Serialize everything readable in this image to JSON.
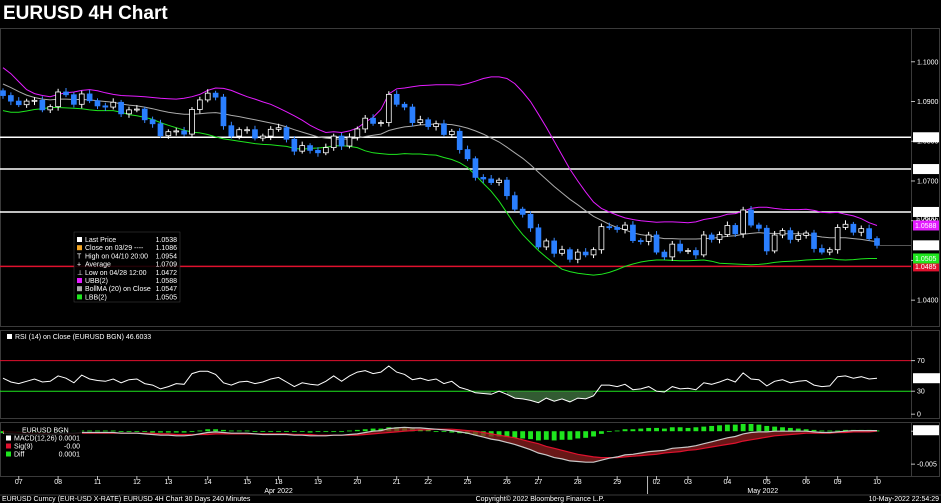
{
  "chart_data": {
    "type": "candlestick",
    "title": "EURUSD 4H Chart",
    "price_panel": {
      "ylim": [
        1.0335,
        1.1085
      ],
      "y_ticks": [
        1.04,
        1.05,
        1.06,
        1.07,
        1.08,
        1.09,
        1.1
      ],
      "y_tick_labels": [
        "1.0400",
        "1.0500",
        "1.0600",
        "1.0700",
        "1.0800",
        "1.0900",
        "1.1000"
      ],
      "levels": [
        {
          "value": 1.081,
          "label": "1.0810",
          "color": "#ffffff"
        },
        {
          "value": 1.073,
          "label": "1.0730",
          "color": "#ffffff"
        },
        {
          "value": 1.0622,
          "label": "1.0622",
          "color": "#ffffff"
        },
        {
          "value": 1.0485,
          "label": "1.0485",
          "color": "#e0112e"
        }
      ],
      "last_price_tag": {
        "value": 1.0538,
        "label": "1.0538"
      },
      "ubb_tag": {
        "value": 1.0588,
        "label": "1.0588"
      },
      "lbb_tag": {
        "value": 1.0505,
        "label": "1.0505"
      },
      "obscured_tag": "1.0600",
      "legend": [
        {
          "label": "Last Price",
          "value": "1.0538",
          "color": "#ffffff"
        },
        {
          "label": "Close on 03/29 ----",
          "value": "1.1086",
          "color": "#f5a623"
        },
        {
          "label": "High on 04/10 20:00",
          "value": "1.0954",
          "color": "#ffffff",
          "marker": "T"
        },
        {
          "label": "Average",
          "value": "1.0709",
          "color": "#ffffff",
          "marker": "+"
        },
        {
          "label": "Low on 04/28 12:00",
          "value": "1.0472",
          "color": "#ffffff",
          "marker": "⊥"
        },
        {
          "label": "UBB(2)",
          "value": "1.0588",
          "color": "#e41cff"
        },
        {
          "label": "BollMA (20)  on Close",
          "value": "1.0547",
          "color": "#aaaaaa"
        },
        {
          "label": "LBB(2)",
          "value": "1.0505",
          "color": "#1ee61e"
        }
      ],
      "series": {
        "close": [
          1.0915,
          1.0901,
          1.0892,
          1.0901,
          1.0903,
          1.0879,
          1.0887,
          1.0924,
          1.0917,
          1.0893,
          1.0919,
          1.0902,
          1.0889,
          1.0886,
          1.0898,
          1.0869,
          1.0879,
          1.0881,
          1.0854,
          1.0844,
          1.0814,
          1.0824,
          1.0826,
          1.0818,
          1.088,
          1.0904,
          1.0921,
          1.0911,
          1.0839,
          1.0813,
          1.0829,
          1.0829,
          1.0808,
          1.0813,
          1.083,
          1.0834,
          1.0805,
          1.0775,
          1.0789,
          1.0777,
          1.0771,
          1.0784,
          1.0813,
          1.0788,
          1.081,
          1.0831,
          1.0858,
          1.0845,
          1.0847,
          1.0918,
          1.0893,
          1.0886,
          1.0847,
          1.0854,
          1.0837,
          1.0844,
          1.0817,
          1.0825,
          1.0779,
          1.0756,
          1.0709,
          1.0705,
          1.0696,
          1.0702,
          1.0663,
          1.0629,
          1.0616,
          1.0582,
          1.0534,
          1.0549,
          1.0518,
          1.0527,
          1.0503,
          1.0521,
          1.0514,
          1.0527,
          1.0585,
          1.0583,
          1.0578,
          1.0589,
          1.055,
          1.0548,
          1.0564,
          1.0521,
          1.0509,
          1.0541,
          1.0524,
          1.0525,
          1.0514,
          1.0564,
          1.0553,
          1.0565,
          1.0588,
          1.0567,
          1.0627,
          1.0589,
          1.0581,
          1.0524,
          1.0564,
          1.0575,
          1.0553,
          1.0563,
          1.0569,
          1.053,
          1.0521,
          1.0527,
          1.0583,
          1.0591,
          1.0571,
          1.058,
          1.0555,
          1.0538
        ],
        "ubb": [
          1.0985,
          1.097,
          1.095,
          1.093,
          1.092,
          1.0915,
          1.0912,
          1.0918,
          1.0922,
          1.0924,
          1.0928,
          1.093,
          1.0927,
          1.0922,
          1.0918,
          1.0915,
          1.0914,
          1.0913,
          1.0912,
          1.091,
          1.0908,
          1.0907,
          1.0906,
          1.0908,
          1.0912,
          1.0918,
          1.0928,
          1.0934,
          1.0933,
          1.0928,
          1.092,
          1.0912,
          1.0906,
          1.0899,
          1.0893,
          1.0884,
          1.0874,
          1.0864,
          1.0853,
          1.084,
          1.083,
          1.0822,
          1.0824,
          1.0822,
          1.0826,
          1.0833,
          1.0848,
          1.086,
          1.088,
          1.0919,
          1.0932,
          1.0934,
          1.0937,
          1.094,
          1.0941,
          1.0942,
          1.0942,
          1.0942,
          1.0941,
          1.0945,
          1.0951,
          1.0958,
          1.0962,
          1.0962,
          1.0958,
          1.0945,
          1.0924,
          1.09,
          1.0868,
          1.0835,
          1.08,
          1.0765,
          1.073,
          1.07,
          1.0672,
          1.0647,
          1.0631,
          1.0622,
          1.0614,
          1.0607,
          1.0603,
          1.06,
          1.0598,
          1.0596,
          1.0597,
          1.0597,
          1.0596,
          1.0595,
          1.0597,
          1.0603,
          1.0606,
          1.061,
          1.0616,
          1.0618,
          1.0624,
          1.0631,
          1.0634,
          1.0634,
          1.0631,
          1.0629,
          1.0628,
          1.0628,
          1.0629,
          1.0626,
          1.0621,
          1.062,
          1.0621,
          1.0616,
          1.0612,
          1.0605,
          1.0595,
          1.0588
        ],
        "ma": [
          1.0944,
          1.0935,
          1.0925,
          1.0916,
          1.091,
          1.0906,
          1.0904,
          1.0906,
          1.0906,
          1.0905,
          1.0905,
          1.0904,
          1.0902,
          1.09,
          1.0898,
          1.0894,
          1.0891,
          1.0889,
          1.0886,
          1.0882,
          1.0877,
          1.0873,
          1.087,
          1.0868,
          1.0868,
          1.0869,
          1.0871,
          1.0872,
          1.0869,
          1.0865,
          1.0862,
          1.0858,
          1.0854,
          1.085,
          1.0846,
          1.0842,
          1.0836,
          1.0829,
          1.0823,
          1.0817,
          1.0811,
          1.0808,
          1.0806,
          1.0805,
          1.0806,
          1.0808,
          1.0812,
          1.0815,
          1.0818,
          1.0827,
          1.0832,
          1.0836,
          1.0838,
          1.0841,
          1.0842,
          1.0844,
          1.0843,
          1.0842,
          1.0838,
          1.0833,
          1.0826,
          1.0818,
          1.0808,
          1.0798,
          1.0785,
          1.0771,
          1.0757,
          1.0741,
          1.0722,
          1.0704,
          1.0686,
          1.067,
          1.0654,
          1.064,
          1.0625,
          1.0611,
          1.0601,
          1.0591,
          1.0583,
          1.0577,
          1.0569,
          1.0565,
          1.0562,
          1.0558,
          1.0555,
          1.0555,
          1.0554,
          1.0554,
          1.0554,
          1.0555,
          1.0556,
          1.0558,
          1.0561,
          1.0562,
          1.0566,
          1.0568,
          1.057,
          1.0568,
          1.0568,
          1.0567,
          1.0567,
          1.0567,
          1.0566,
          1.0562,
          1.0559,
          1.0557,
          1.0557,
          1.0557,
          1.0555,
          1.0553,
          1.055,
          1.0547
        ],
        "lbb": [
          1.0877,
          1.0873,
          1.0873,
          1.0876,
          1.088,
          1.0882,
          1.0885,
          1.0885,
          1.0884,
          1.0883,
          1.0882,
          1.0879,
          1.0877,
          1.0877,
          1.0877,
          1.0873,
          1.0867,
          1.0864,
          1.086,
          1.0855,
          1.0847,
          1.084,
          1.0834,
          1.0828,
          1.0823,
          1.0821,
          1.0817,
          1.0811,
          1.0806,
          1.0803,
          1.08,
          1.0797,
          1.0794,
          1.0792,
          1.0791,
          1.0789,
          1.0787,
          1.0782,
          1.078,
          1.0782,
          1.0783,
          1.0785,
          1.0788,
          1.0789,
          1.0787,
          1.0784,
          1.0776,
          1.0771,
          1.0769,
          1.0767,
          1.0767,
          1.0769,
          1.0768,
          1.0768,
          1.0766,
          1.0765,
          1.0759,
          1.0754,
          1.0746,
          1.0734,
          1.0715,
          1.0694,
          1.0674,
          1.0649,
          1.062,
          1.059,
          1.0565,
          1.0545,
          1.0525,
          1.0508,
          1.0492,
          1.0478,
          1.0472,
          1.0468,
          1.0465,
          1.0463,
          1.0465,
          1.047,
          1.0477,
          1.0485,
          1.0491,
          1.0496,
          1.0499,
          1.0501,
          1.0501,
          1.05,
          1.0499,
          1.0499,
          1.05,
          1.0501,
          1.0498,
          1.0493,
          1.0492,
          1.0491,
          1.049,
          1.0489,
          1.049,
          1.0492,
          1.0495,
          1.0497,
          1.0498,
          1.0499,
          1.0501,
          1.0502,
          1.0503,
          1.0505,
          1.0502,
          1.0501,
          1.0502,
          1.0504,
          1.0505,
          1.0505
        ]
      }
    },
    "rsi_panel": {
      "label": "RSI (14)  on Close (EURUSD BGN) 46.6033",
      "value_tag": "46.6033",
      "ylim": [
        -5,
        110
      ],
      "y_ticks": [
        0,
        30,
        70
      ],
      "y_tick_labels": [
        "0",
        "30",
        "70"
      ],
      "levels": [
        30,
        70
      ],
      "values": [
        47,
        42,
        40,
        43,
        46,
        42,
        43,
        50,
        47,
        41,
        51,
        46,
        44,
        43,
        46,
        41,
        45,
        46,
        40,
        38,
        33,
        36,
        40,
        39,
        53,
        56,
        56,
        52,
        41,
        38,
        42,
        43,
        40,
        42,
        46,
        48,
        42,
        36,
        41,
        39,
        38,
        43,
        50,
        43,
        50,
        55,
        57,
        53,
        55,
        63,
        55,
        52,
        45,
        47,
        44,
        46,
        40,
        43,
        35,
        32,
        28,
        27,
        26,
        30,
        26,
        21,
        20,
        18,
        15,
        21,
        17,
        20,
        16,
        21,
        20,
        24,
        38,
        38,
        36,
        39,
        32,
        33,
        36,
        30,
        29,
        36,
        33,
        34,
        32,
        41,
        39,
        42,
        46,
        42,
        54,
        46,
        45,
        37,
        43,
        45,
        41,
        43,
        44,
        38,
        36,
        37,
        49,
        50,
        47,
        49,
        46,
        47
      ]
    },
    "macd_panel": {
      "legend": [
        {
          "label": "EURUSD BGN",
          "value": "",
          "color": "#ffffff"
        },
        {
          "label": "MACD(12,26)",
          "value": "0.0001",
          "color": "#ffffff"
        },
        {
          "label": "Sig(9)",
          "value": "-0.00",
          "color": "#e0112e"
        },
        {
          "label": "Diff",
          "value": "0.0001",
          "color": "#1ee61e"
        }
      ],
      "value_tag": "0.0001",
      "ylim": [
        -0.0068,
        0.0014
      ],
      "y_ticks": [
        0,
        -0.005
      ],
      "y_tick_labels": [
        "0",
        "-0.005"
      ],
      "macd": [
        -0.0003,
        -0.0004,
        -0.0005,
        -0.0005,
        -0.0005,
        -0.0005,
        -0.0005,
        -0.0004,
        -0.0003,
        -0.0003,
        -0.0002,
        -0.0002,
        -0.0002,
        -0.0002,
        -0.0002,
        -0.0003,
        -0.0003,
        -0.0003,
        -0.0004,
        -0.0005,
        -0.0006,
        -0.0006,
        -0.0007,
        -0.0007,
        -0.0006,
        -0.0004,
        -0.0002,
        -0.0001,
        -0.0002,
        -0.0003,
        -0.0003,
        -0.0003,
        -0.0004,
        -0.0005,
        -0.0005,
        -0.0005,
        -0.0005,
        -0.0006,
        -0.0006,
        -0.0007,
        -0.0007,
        -0.0007,
        -0.0006,
        -0.0006,
        -0.0005,
        -0.0004,
        -0.0002,
        0.0,
        0.0001,
        0.0004,
        0.0005,
        0.0006,
        0.0005,
        0.0005,
        0.0004,
        0.0003,
        0.0002,
        0.0001,
        -0.0001,
        -0.0003,
        -0.0006,
        -0.0009,
        -0.0012,
        -0.0014,
        -0.0017,
        -0.002,
        -0.0024,
        -0.0028,
        -0.0033,
        -0.0036,
        -0.004,
        -0.0042,
        -0.0045,
        -0.0046,
        -0.0047,
        -0.0047,
        -0.0044,
        -0.0041,
        -0.0039,
        -0.0036,
        -0.0035,
        -0.0033,
        -0.0031,
        -0.003,
        -0.0029,
        -0.0026,
        -0.0025,
        -0.0024,
        -0.0022,
        -0.0019,
        -0.0016,
        -0.0013,
        -0.001,
        -0.0008,
        -0.0004,
        -0.0002,
        -0.0001,
        -0.0001,
        0.0,
        0.0,
        0.0,
        0.0,
        0.0,
        -0.0001,
        -0.0002,
        -0.0002,
        -0.0001,
        0.0,
        0.0001,
        0.0001,
        0.0001,
        0.0001
      ],
      "signal": [
        0.0,
        -0.0001,
        -0.0002,
        -0.0002,
        -0.0003,
        -0.0003,
        -0.0004,
        -0.0004,
        -0.0004,
        -0.0004,
        -0.0003,
        -0.0003,
        -0.0003,
        -0.0003,
        -0.0003,
        -0.0003,
        -0.0003,
        -0.0003,
        -0.0003,
        -0.0003,
        -0.0004,
        -0.0004,
        -0.0005,
        -0.0005,
        -0.0005,
        -0.0005,
        -0.0005,
        -0.0004,
        -0.0004,
        -0.0004,
        -0.0004,
        -0.0004,
        -0.0004,
        -0.0004,
        -0.0004,
        -0.0004,
        -0.0004,
        -0.0005,
        -0.0005,
        -0.0005,
        -0.0006,
        -0.0006,
        -0.0006,
        -0.0006,
        -0.0006,
        -0.0006,
        -0.0005,
        -0.0004,
        -0.0003,
        -0.0002,
        -0.0001,
        0.0,
        0.0001,
        0.0002,
        0.0002,
        0.0003,
        0.0003,
        0.0003,
        0.0002,
        0.0001,
        0.0,
        -0.0002,
        -0.0004,
        -0.0006,
        -0.0008,
        -0.001,
        -0.0013,
        -0.0016,
        -0.0019,
        -0.0023,
        -0.0026,
        -0.0029,
        -0.0032,
        -0.0035,
        -0.0037,
        -0.0039,
        -0.004,
        -0.004,
        -0.004,
        -0.0039,
        -0.0038,
        -0.0037,
        -0.0036,
        -0.0035,
        -0.0033,
        -0.0032,
        -0.0031,
        -0.0029,
        -0.0028,
        -0.0026,
        -0.0024,
        -0.0022,
        -0.002,
        -0.0018,
        -0.0015,
        -0.0013,
        -0.0011,
        -0.0009,
        -0.0007,
        -0.0006,
        -0.0005,
        -0.0004,
        -0.0003,
        -0.0003,
        -0.0003,
        -0.0003,
        -0.0002,
        -0.0002,
        -0.0001,
        -0.0001,
        -0.0001,
        0.0
      ]
    },
    "x_axis": {
      "day_labels": [
        "07",
        "08",
        "11",
        "12",
        "13",
        "14",
        "15",
        "18",
        "19",
        "20",
        "21",
        "22",
        "25",
        "26",
        "27",
        "28",
        "29",
        "02",
        "03",
        "04",
        "05",
        "06",
        "09",
        "10"
      ],
      "month_labels": [
        "Apr 2022",
        "May 2022"
      ]
    },
    "footer": {
      "left": "EURUSD Curncy (EUR-USD X-RATE) EURUSD 4H Chart 30 Days 240 Minutes",
      "center": "Copyright© 2022 Bloomberg Finance L.P.",
      "right": "10-May-2022 22:54:29"
    }
  }
}
